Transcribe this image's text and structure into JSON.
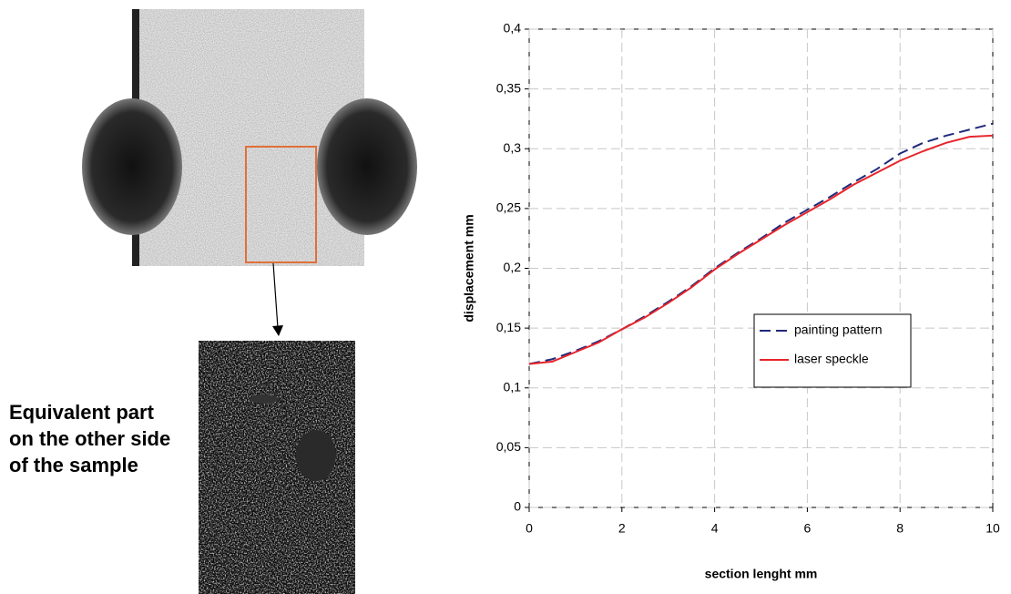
{
  "chart_data": {
    "type": "line",
    "annotation": "Equivalent part on the other side of the sample",
    "xlabel": "section lenght mm",
    "ylabel": "displacement mm",
    "x": [
      0,
      0.5,
      1,
      1.5,
      2,
      2.5,
      3,
      3.5,
      4,
      4.5,
      5,
      5.5,
      6,
      6.5,
      7,
      7.5,
      8,
      8.5,
      9,
      9.5,
      10
    ],
    "series": [
      {
        "name": "painting pattern",
        "color": "#1f2a7a",
        "linestyle": "dashed",
        "values": [
          0.12,
          0.124,
          0.131,
          0.139,
          0.149,
          0.16,
          0.172,
          0.185,
          0.2,
          0.213,
          0.225,
          0.238,
          0.249,
          0.26,
          0.272,
          0.283,
          0.296,
          0.305,
          0.311,
          0.316,
          0.321
        ]
      },
      {
        "name": "laser speckle",
        "color": "#e8242a",
        "linestyle": "solid",
        "values": [
          0.12,
          0.122,
          0.13,
          0.138,
          0.149,
          0.159,
          0.171,
          0.184,
          0.199,
          0.212,
          0.224,
          0.236,
          0.247,
          0.258,
          0.27,
          0.28,
          0.29,
          0.298,
          0.305,
          0.31,
          0.311
        ]
      }
    ],
    "xlim": [
      0,
      10
    ],
    "xticks": [
      0,
      2,
      4,
      6,
      8,
      10
    ],
    "ylim": [
      0,
      0.4
    ],
    "yticks": [
      0,
      {
        "value": 0.05,
        "label": "0,05"
      },
      {
        "value": 0.1,
        "label": "0,1"
      },
      {
        "value": 0.15,
        "label": "0,15"
      },
      {
        "value": 0.2,
        "label": "0,2"
      },
      {
        "value": 0.25,
        "label": "0,25"
      },
      {
        "value": 0.3,
        "label": "0,3"
      },
      {
        "value": 0.35,
        "label": "0,35"
      },
      {
        "value": 0.4,
        "label": "0,4"
      }
    ],
    "grid": true,
    "legend": "center right"
  }
}
